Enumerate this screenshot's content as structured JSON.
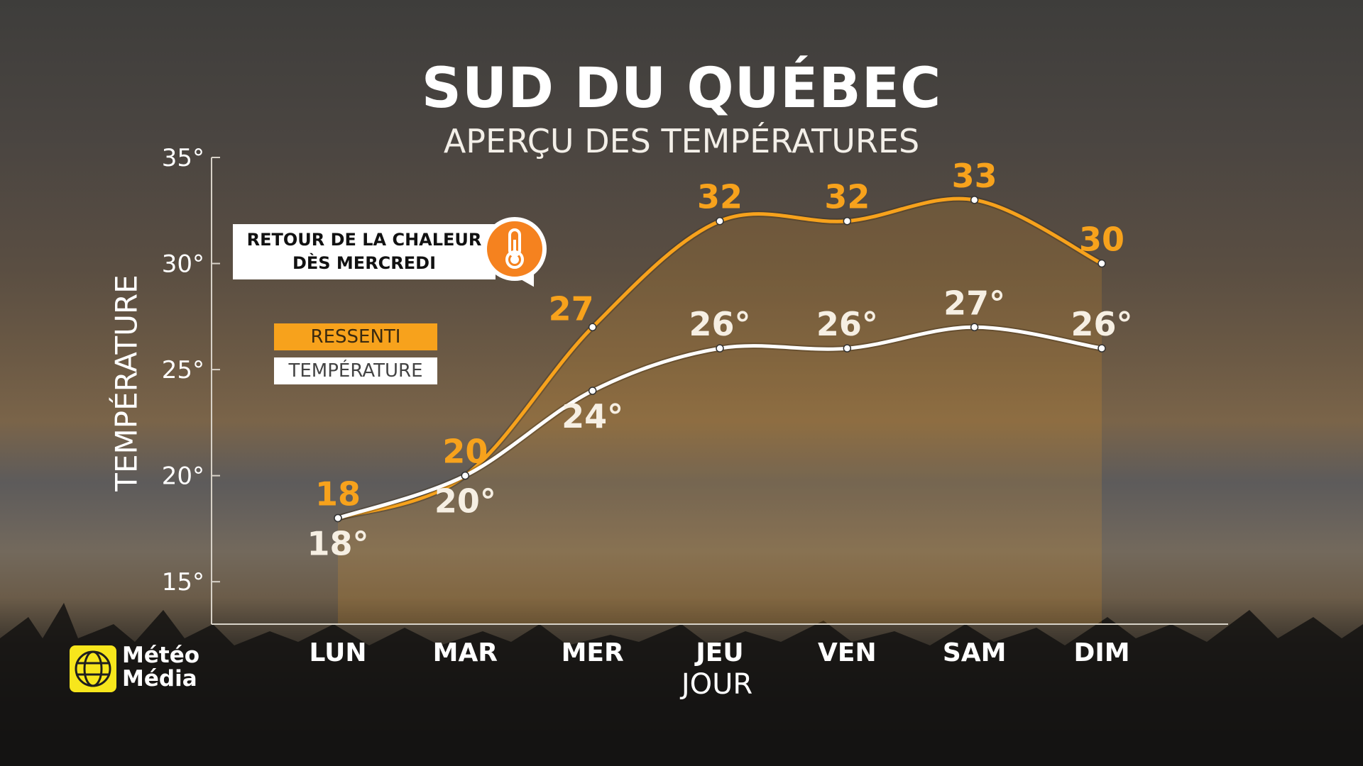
{
  "header": {
    "title": "SUD DU QUÉBEC",
    "subtitle": "APERÇU DES TEMPÉRATURES"
  },
  "callout": {
    "line1": "RETOUR DE LA CHALEUR",
    "line2": "DÈS MERCREDI",
    "icon": "thermometer-icon"
  },
  "legend": {
    "feels_like": "RESSENTI",
    "temperature": "TEMPÉRATURE"
  },
  "logo": {
    "line1": "Météo",
    "line2": "Média"
  },
  "colors": {
    "feels_like": "#f7a21c",
    "temperature": "#ffffff",
    "accent": "#f5821f"
  },
  "chart_data": {
    "type": "line",
    "x": [
      "LUN",
      "MAR",
      "MER",
      "JEU",
      "VEN",
      "SAM",
      "DIM"
    ],
    "xlabel": "JOUR",
    "ylabel": "TEMPÉRATURE",
    "ylim": [
      13,
      35
    ],
    "yticks": [
      15,
      20,
      25,
      30,
      35
    ],
    "ytick_labels": [
      "15°",
      "20°",
      "25°",
      "30°",
      "35°"
    ],
    "grid": false,
    "legend_position": "left",
    "series": [
      {
        "name": "RESSENTI",
        "values": [
          18,
          20,
          27,
          32,
          32,
          33,
          30
        ],
        "labels": [
          "18",
          "20",
          "27",
          "32",
          "32",
          "33",
          "30"
        ],
        "label_position": [
          "above",
          "above",
          "left",
          "above",
          "above",
          "above",
          "above"
        ]
      },
      {
        "name": "TEMPÉRATURE",
        "values": [
          18,
          20,
          24,
          26,
          26,
          27,
          26
        ],
        "labels": [
          "18°",
          "20°",
          "24°",
          "26°",
          "26°",
          "27°",
          "26°"
        ],
        "label_position": [
          "below",
          "below",
          "below",
          "above",
          "above",
          "above",
          "above"
        ]
      }
    ]
  }
}
